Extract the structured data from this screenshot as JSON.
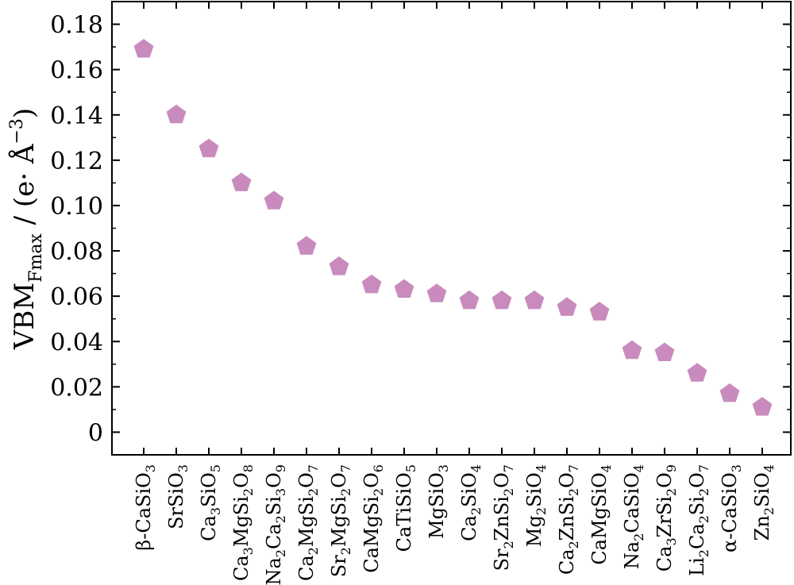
{
  "chart_data": {
    "type": "scatter",
    "marker": "pentagon",
    "marker_color": "#c98bbd",
    "ylabel": "VBM",
    "ylabel_sub": "Fmax",
    "ylabel_unit_main": " / (e· Å",
    "ylabel_unit_sup": "−3",
    "ylabel_unit_close": ")",
    "ylim": [
      -0.01,
      0.19
    ],
    "yticks": [
      "0",
      "0.02",
      "0.04",
      "0.06",
      "0.08",
      "0.10",
      "0.12",
      "0.14",
      "0.16",
      "0.18"
    ],
    "ytick_values": [
      0,
      0.02,
      0.04,
      0.06,
      0.08,
      0.1,
      0.12,
      0.14,
      0.16,
      0.18
    ],
    "grid": false,
    "categories": [
      "β-CaSiO3",
      "SrSiO3",
      "Ca3SiO5",
      "Ca3MgSi2O8",
      "Na2Ca2Si3O9",
      "Ca2MgSi2O7",
      "Sr2MgSi2O7",
      "CaMgSi2O6",
      "CaTiSiO5",
      "MgSiO3",
      "Ca2SiO4",
      "Sr2ZnSi2O7",
      "Mg2SiO4",
      "Ca2ZnSi2O7",
      "CaMgSiO4",
      "Na2CaSiO4",
      "Ca3ZrSi2O9",
      "Li2Ca2Si2O7",
      "α-CaSiO3",
      "Zn2SiO4"
    ],
    "values": [
      0.169,
      0.14,
      0.125,
      0.11,
      0.102,
      0.082,
      0.073,
      0.065,
      0.063,
      0.061,
      0.058,
      0.058,
      0.058,
      0.055,
      0.053,
      0.036,
      0.035,
      0.026,
      0.017,
      0.011
    ]
  }
}
